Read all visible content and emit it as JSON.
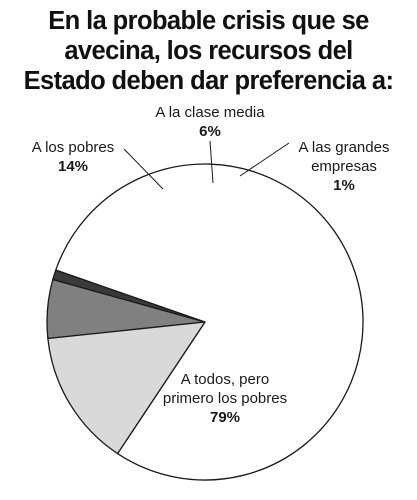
{
  "chart_data": {
    "type": "pie",
    "title_lines": [
      "En la probable crisis que se",
      "avecina, los recursos del",
      "Estado deben dar preferencia a:"
    ],
    "slices": [
      {
        "label_lines": [
          "A la clase media"
        ],
        "value_label": "6%",
        "value": 6,
        "color": "#808080"
      },
      {
        "label_lines": [
          "A las grandes",
          "empresas"
        ],
        "value_label": "1%",
        "value": 1,
        "color": "#3a3a3a"
      },
      {
        "label_lines": [
          "A todos, pero",
          "primero los pobres"
        ],
        "value_label": "79%",
        "value": 79,
        "color": "#ffffff"
      },
      {
        "label_lines": [
          "A los pobres"
        ],
        "value_label": "14%",
        "value": 14,
        "color": "#d9d9d9"
      }
    ]
  }
}
